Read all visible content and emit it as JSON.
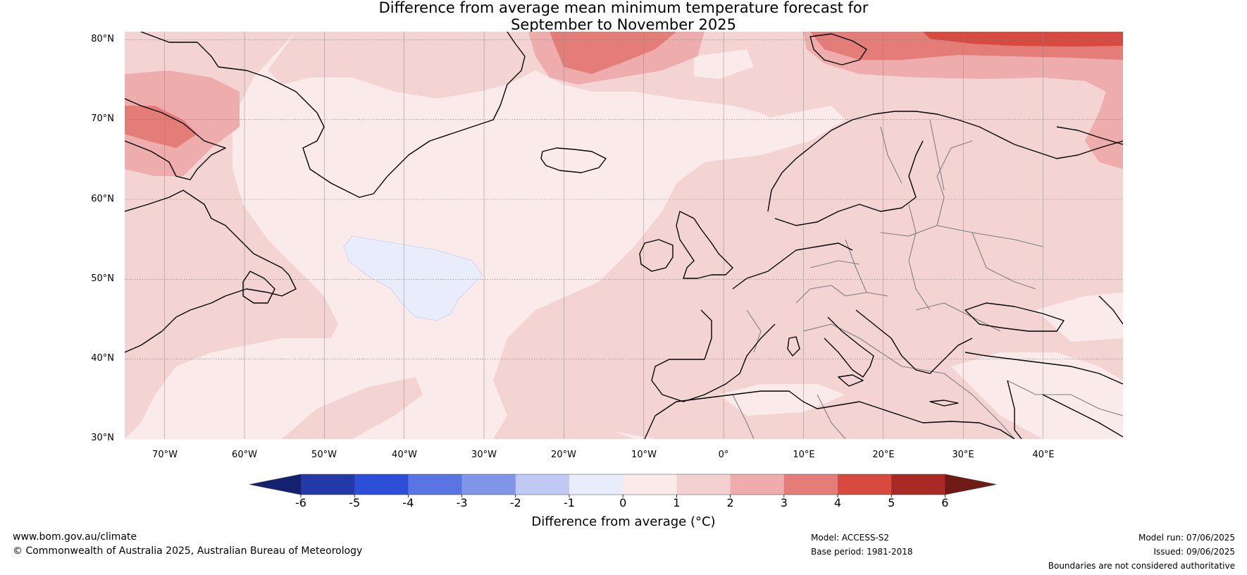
{
  "title": {
    "line1": "Difference from average mean minimum temperature forecast for",
    "line2": "September to November 2025"
  },
  "map": {
    "region": "North Atlantic and Europe",
    "lon_range": [
      -75,
      50
    ],
    "lat_range": [
      30,
      81
    ],
    "lat_labels": [
      "80°N",
      "70°N",
      "60°N",
      "50°N",
      "40°N",
      "30°N"
    ],
    "lon_labels": [
      "70°W",
      "60°W",
      "50°W",
      "40°W",
      "30°W",
      "20°W",
      "10°W",
      "0°",
      "10°E",
      "20°E",
      "30°E",
      "40°E"
    ],
    "background_category": "0 to 1",
    "anomaly_areas": [
      {
        "category": "1 to 2",
        "location": "western margin and Labrador Sea"
      },
      {
        "category": "1 to 2",
        "location": "Europe, Mediterranean and northern seas"
      },
      {
        "category": "2 to 3",
        "location": "Baffin Island / Hudson Strait"
      },
      {
        "category": "2 to 3",
        "location": "Greenland Sea and Barents Sea"
      },
      {
        "category": "3 to 4",
        "location": "Svalbard and Barents Sea"
      },
      {
        "category": "4 to 5",
        "location": "northern Barents Sea"
      },
      {
        "category": "-1 to 0",
        "location": "central North Atlantic near 50°N 40°W"
      }
    ]
  },
  "colorbar": {
    "labels": [
      "-6",
      "-5",
      "-4",
      "-3",
      "-2",
      "-1",
      "0",
      "1",
      "2",
      "3",
      "4",
      "5",
      "6"
    ],
    "colors": [
      "#13216f",
      "#2439a8",
      "#2c4ed8",
      "#5b74e3",
      "#8296e9",
      "#bfc9f4",
      "#e8ecfb",
      "#fbeaea",
      "#f4d1d1",
      "#eeacac",
      "#e47d78",
      "#d84a40",
      "#a92925",
      "#701a16"
    ],
    "title": "Difference from average (°C)"
  },
  "colors": {
    "cat_0_1": "#fbeaea",
    "cat_1_2": "#f4d3d3",
    "cat_2_3": "#eeacac",
    "cat_3_4": "#e47d78",
    "cat_4_5": "#d84a40",
    "cat_m1_0": "#e8ecfb",
    "coastline": "#000000",
    "borders": "#808080"
  },
  "footer": {
    "website": "www.bom.gov.au/climate",
    "copyright": "© Commonwealth of Australia 2025, Australian Bureau of Meteorology",
    "model": "Model: ACCESS-S2",
    "base_period": "Base period: 1981-2018",
    "model_run": "Model run: 07/06/2025",
    "issued": "Issued: 09/06/2025",
    "disclaimer": "Boundaries are not considered authoritative"
  }
}
